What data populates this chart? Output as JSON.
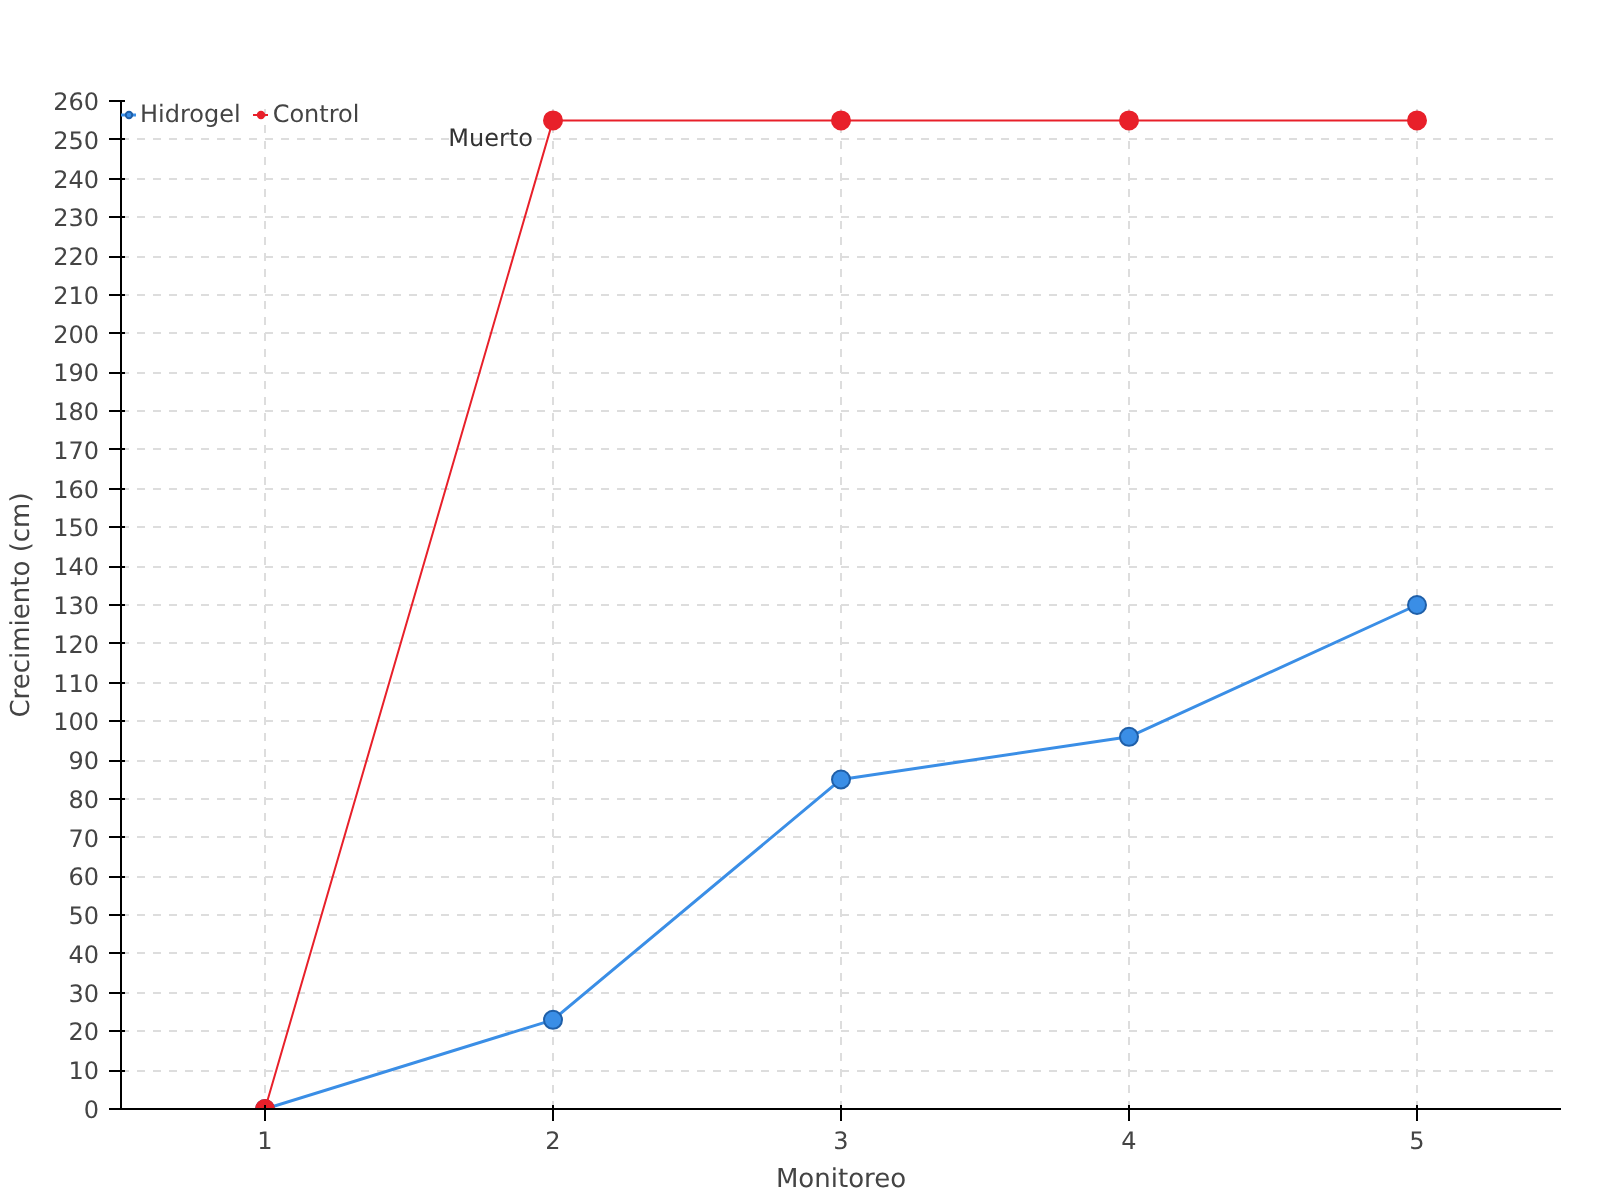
{
  "chart_data": {
    "type": "line",
    "xlabel": "Monitoreo",
    "ylabel": "Crecimiento (cm)",
    "categories": [
      "1",
      "2",
      "3",
      "4",
      "5"
    ],
    "series": [
      {
        "name": "Hidrogel",
        "color": "#3a8ee6",
        "values": [
          0,
          23,
          85,
          96,
          130
        ]
      },
      {
        "name": "Control",
        "color": "#e8202a",
        "values": [
          0,
          255,
          255,
          255,
          255
        ]
      }
    ],
    "ylim": [
      0,
      260
    ],
    "yticks": [
      0,
      10,
      20,
      30,
      40,
      50,
      60,
      70,
      80,
      90,
      100,
      110,
      120,
      130,
      140,
      150,
      160,
      170,
      180,
      190,
      200,
      210,
      220,
      230,
      240,
      250,
      260
    ],
    "annotations": [
      {
        "text": "Muerto",
        "x": "2",
        "y": 255
      }
    ],
    "grid": true,
    "legend": "top left",
    "marker": "circle",
    "line_style": "solid"
  }
}
